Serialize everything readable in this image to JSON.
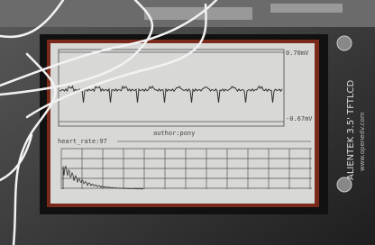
{
  "screen": {
    "max_label": "0.70mV",
    "min_label": "-0.67mV",
    "author": "author:pony",
    "heart_rate": "heart_rate:97"
  },
  "board": {
    "brand": "ALIENTEK 3.5' TFTLCD",
    "url": "www.openedv.com"
  }
}
